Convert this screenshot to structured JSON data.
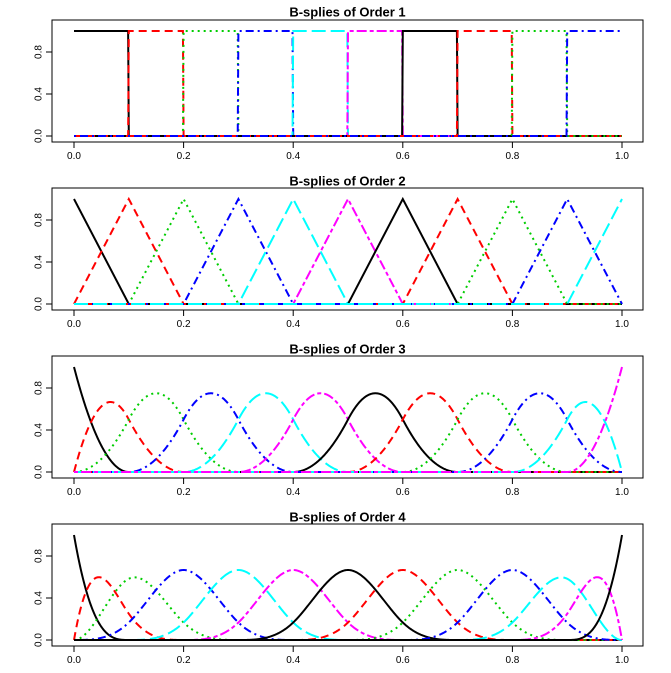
{
  "chart_data": [
    {
      "type": "line",
      "title": "B-splies of Order 1",
      "order": 1,
      "knots": [
        0,
        0.1,
        0.2,
        0.3,
        0.4,
        0.5,
        0.6,
        0.7,
        0.8,
        0.9,
        1.0
      ],
      "basis_count": 10,
      "xlim": [
        0,
        1
      ],
      "ylim": [
        0,
        1
      ],
      "xticks": [
        "0.0",
        "0.2",
        "0.4",
        "0.6",
        "0.8",
        "1.0"
      ],
      "yticks": [
        "0.0",
        "0.4",
        "0.8"
      ],
      "grid": false
    },
    {
      "type": "line",
      "title": "B-splies of Order 2",
      "order": 2,
      "knots": [
        0,
        0.1,
        0.2,
        0.3,
        0.4,
        0.5,
        0.6,
        0.7,
        0.8,
        0.9,
        1.0
      ],
      "basis_count": 11,
      "xlim": [
        0,
        1
      ],
      "ylim": [
        0,
        1
      ],
      "xticks": [
        "0.0",
        "0.2",
        "0.4",
        "0.6",
        "0.8",
        "1.0"
      ],
      "yticks": [
        "0.0",
        "0.4",
        "0.8"
      ],
      "grid": false
    },
    {
      "type": "line",
      "title": "B-splies of Order 3",
      "order": 3,
      "knots": [
        0,
        0.1,
        0.2,
        0.3,
        0.4,
        0.5,
        0.6,
        0.7,
        0.8,
        0.9,
        1.0
      ],
      "basis_count": 12,
      "xlim": [
        0,
        1
      ],
      "ylim": [
        0,
        1
      ],
      "xticks": [
        "0.0",
        "0.2",
        "0.4",
        "0.6",
        "0.8",
        "1.0"
      ],
      "yticks": [
        "0.0",
        "0.4",
        "0.8"
      ],
      "grid": false
    },
    {
      "type": "line",
      "title": "B-splies of Order 4",
      "order": 4,
      "knots": [
        0,
        0.1,
        0.2,
        0.3,
        0.4,
        0.5,
        0.6,
        0.7,
        0.8,
        0.9,
        1.0
      ],
      "basis_count": 13,
      "xlim": [
        0,
        1
      ],
      "ylim": [
        0,
        1
      ],
      "xticks": [
        "0.0",
        "0.2",
        "0.4",
        "0.6",
        "0.8",
        "1.0"
      ],
      "yticks": [
        "0.0",
        "0.4",
        "0.8"
      ],
      "grid": false
    }
  ],
  "style": {
    "colors": [
      "#000000",
      "#ff0000",
      "#00cd00",
      "#0000ff",
      "#00ffff",
      "#ff00ff"
    ],
    "dash_patterns": [
      "solid",
      "dashed",
      "dotted",
      "dotdash",
      "longdash",
      "twodash"
    ]
  }
}
